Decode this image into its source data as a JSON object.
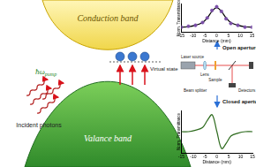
{
  "diagram": {
    "conduction_band": "Conduction band",
    "valence_band": "Valance band",
    "virtual_state": "Virtual state",
    "incident_photons": "Incident photons",
    "pump_energy": {
      "symbol": "ħω",
      "subscript": "pump"
    },
    "open_aperture": "Open aperture",
    "closed_aperture": "Closed aperture",
    "setup": {
      "laser": "Laser source",
      "lens": "Lens",
      "sample": "Sample",
      "splitter": "Beam splitter",
      "detectors": "Detectors"
    }
  },
  "chart_data": [
    {
      "type": "scatter",
      "xlabel": "Distance (mm)",
      "ylabel": "Norm. Transmittance",
      "x": [
        -15,
        -12,
        -9,
        -6,
        -4,
        -2,
        0,
        2,
        4,
        6,
        9,
        12,
        15
      ],
      "series": [
        {
          "color": "#7b4fa8",
          "marker": "circle",
          "values": [
            1.0,
            1.01,
            1.02,
            1.05,
            1.1,
            1.18,
            1.22,
            1.17,
            1.09,
            1.04,
            1.02,
            1.0,
            1.0
          ]
        },
        {
          "type": "line",
          "color": "#000000",
          "line_style": "solid",
          "values": [
            1.0,
            1.005,
            1.02,
            1.05,
            1.1,
            1.17,
            1.21,
            1.17,
            1.1,
            1.05,
            1.02,
            1.005,
            1.0
          ]
        }
      ],
      "xlim": [
        -15,
        15
      ],
      "xticks": [
        -15,
        -10,
        -5,
        0,
        5,
        10,
        15
      ],
      "ylim": [
        0.95,
        1.25
      ],
      "grid": false,
      "tick_labels": "x"
    },
    {
      "type": "line",
      "xlabel": "Distance (mm)",
      "ylabel": "Norm. Transmittance",
      "x": [
        -15,
        -12,
        -9,
        -6,
        -4,
        -2,
        0,
        2,
        4,
        6,
        9,
        12,
        15
      ],
      "series": [
        {
          "color": "#2e6b1e",
          "line_style": "solid",
          "values": [
            1.0,
            1.0,
            1.01,
            1.03,
            1.08,
            1.12,
            1.0,
            0.88,
            0.92,
            0.97,
            0.99,
            1.0,
            1.0
          ]
        }
      ],
      "xlim": [
        -15,
        15
      ],
      "xticks": [
        -15,
        -10,
        -5,
        0,
        5,
        10,
        15
      ],
      "ylim": [
        0.85,
        1.15
      ],
      "grid": false,
      "tick_labels": "x"
    }
  ]
}
